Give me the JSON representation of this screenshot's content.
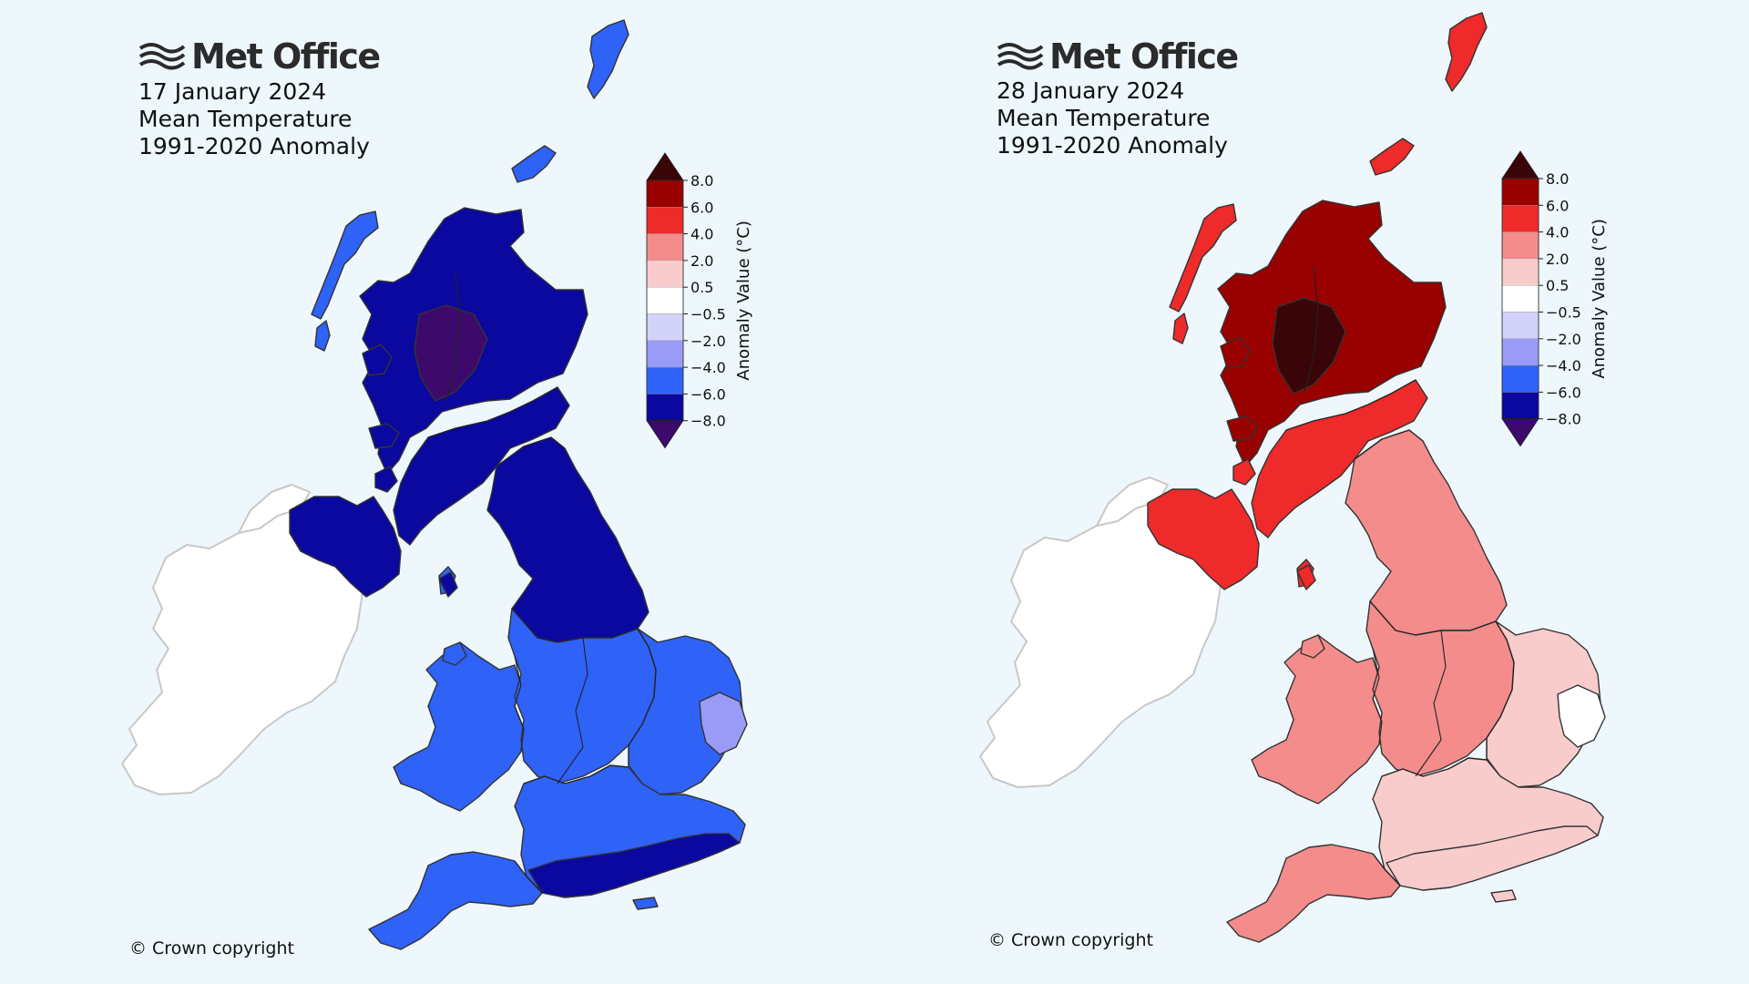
{
  "legend": {
    "axis_label": "Anomaly Value (°C)",
    "ticks": [
      "8.0",
      "6.0",
      "4.0",
      "2.0",
      "0.5",
      "−0.5",
      "−2.0",
      "−4.0",
      "−6.0",
      "−8.0"
    ],
    "bin_colors": [
      "#3a0508",
      "#990000",
      "#ee2a2a",
      "#f48c8c",
      "#f9cccc",
      "#ffffff",
      "#d2d2fb",
      "#9a9af7",
      "#2f62f7",
      "#0a089e",
      "#3d0a6b"
    ]
  },
  "maps": [
    {
      "brand": "Met Office",
      "date": "17 January 2024",
      "variable": "Mean Temperature",
      "baseline": "1991-2020 Anomaly",
      "copyright": "© Crown copyright",
      "region_colors": {
        "north_scotland": "#0a089e",
        "highlands_core": "#3d0a6b",
        "southern_scotland": "#0a089e",
        "northern_ireland": "#0a089e",
        "north_england": "#0a089e",
        "wales": "#2f62f7",
        "midlands": "#2f62f7",
        "east_anglia": "#2f62f7",
        "east_anglia_patch": "#9a9af7",
        "south_england": "#2f62f7",
        "south_coast_band": "#0a089e",
        "south_west": "#2f62f7",
        "islands": "#2f62f7"
      }
    },
    {
      "brand": "Met Office",
      "date": "28 January 2024",
      "variable": "Mean Temperature",
      "baseline": "1991-2020 Anomaly",
      "copyright": "© Crown copyright",
      "region_colors": {
        "north_scotland": "#990000",
        "highlands_core": "#3a0508",
        "southern_scotland": "#ee2a2a",
        "northern_ireland": "#ee2a2a",
        "north_england": "#f48c8c",
        "wales": "#f48c8c",
        "midlands": "#f48c8c",
        "east_anglia": "#f9cccc",
        "east_anglia_patch": "#ffffff",
        "south_england": "#f9cccc",
        "south_coast_band": "#f9cccc",
        "south_west": "#f48c8c",
        "islands": "#ee2a2a"
      }
    }
  ]
}
